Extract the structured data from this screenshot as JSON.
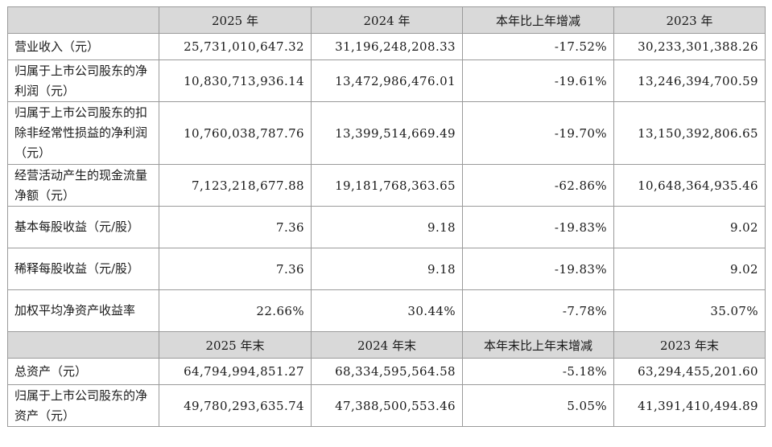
{
  "headers1": [
    "2025 年",
    "2024 年",
    "本年比上年增减",
    "2023 年"
  ],
  "headers2": [
    "2025 年末",
    "2024 年末",
    "本年末比上年末增减",
    "2023 年末"
  ],
  "rows1": [
    {
      "label": "营业收入（元）",
      "values": [
        "25,731,010,647.32",
        "31,196,248,208.33",
        "-17.52%",
        "30,233,301,388.26"
      ]
    },
    {
      "label": "归属于上市公司股东的净利润（元）",
      "values": [
        "10,830,713,936.14",
        "13,472,986,476.01",
        "-19.61%",
        "13,246,394,700.59"
      ]
    },
    {
      "label": "归属于上市公司股东的扣除非经常性损益的净利润（元）",
      "values": [
        "10,760,038,787.76",
        "13,399,514,669.49",
        "-19.70%",
        "13,150,392,806.65"
      ]
    },
    {
      "label": "经营活动产生的现金流量净额（元）",
      "values": [
        "7,123,218,677.88",
        "19,181,768,363.65",
        "-62.86%",
        "10,648,364,935.46"
      ]
    },
    {
      "label": "基本每股收益（元/股）",
      "values": [
        "7.36",
        "9.18",
        "-19.83%",
        "9.02"
      ]
    },
    {
      "label": "稀释每股收益（元/股）",
      "values": [
        "7.36",
        "9.18",
        "-19.83%",
        "9.02"
      ]
    },
    {
      "label": "加权平均净资产收益率",
      "values": [
        "22.66%",
        "30.44%",
        "-7.78%",
        "35.07%"
      ]
    }
  ],
  "rows2": [
    {
      "label": "总资产（元）",
      "values": [
        "64,794,994,851.27",
        "68,334,595,564.58",
        "-5.18%",
        "63,294,455,201.60"
      ]
    },
    {
      "label": "归属于上市公司股东的净资产（元）",
      "values": [
        "49,780,293,635.74",
        "47,388,500,553.46",
        "5.05%",
        "41,391,410,494.89"
      ]
    }
  ]
}
